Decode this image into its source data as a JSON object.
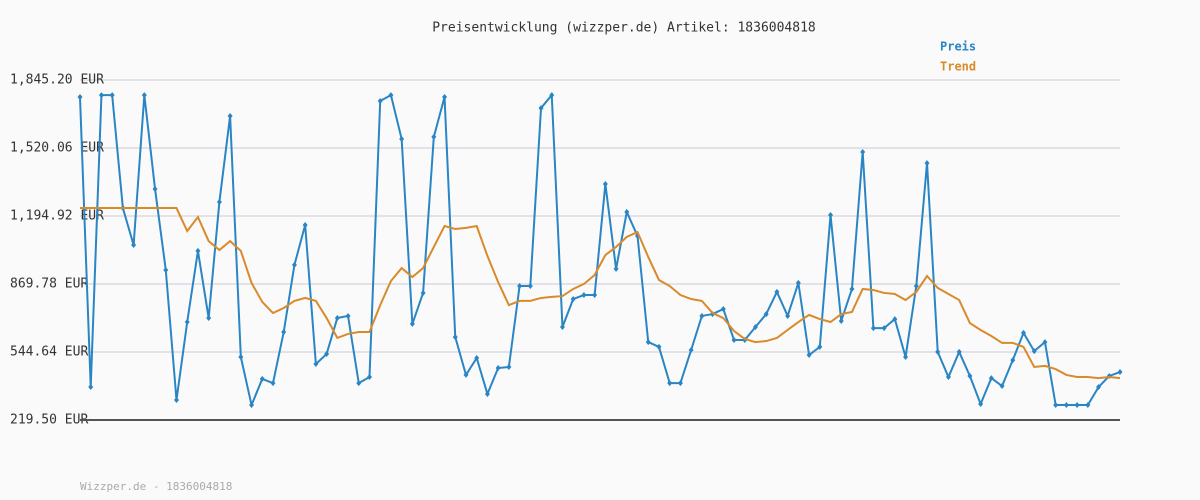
{
  "chart_data": {
    "type": "line",
    "title": "Preisentwicklung (wizzper.de) Artikel: 1836004818",
    "ylim": [
      219.5,
      1845.2
    ],
    "yticks": [
      {
        "value": 219.5,
        "label": "219.50 EUR"
      },
      {
        "value": 544.64,
        "label": "544.64 EUR"
      },
      {
        "value": 869.78,
        "label": "869.78 EUR"
      },
      {
        "value": 1194.92,
        "label": "1,194.92 EUR"
      },
      {
        "value": 1520.06,
        "label": "1,520.06 EUR"
      },
      {
        "value": 1845.2,
        "label": "1,845.20 EUR"
      }
    ],
    "grid": true,
    "legend": "top-right",
    "series": [
      {
        "name": "Preis",
        "color": "#2a85c4",
        "markers": true,
        "values": [
          1764,
          377,
          1773,
          1773,
          1233,
          1056,
          1773,
          1324,
          937,
          315,
          688,
          1028,
          707,
          1262,
          1673,
          521,
          291,
          416,
          396,
          640,
          961,
          1152,
          487,
          535,
          707,
          717,
          396,
          425,
          1745,
          1773,
          1563,
          679,
          827,
          1573,
          1764,
          616,
          435,
          516,
          344,
          468,
          473,
          860,
          860,
          1711,
          1773,
          664,
          798,
          817,
          817,
          1348,
          942,
          1214,
          1099,
          592,
          569,
          396,
          396,
          554,
          717,
          726,
          750,
          602,
          602,
          664,
          726,
          832,
          717,
          875,
          530,
          569,
          1200,
          693,
          846,
          1501,
          659,
          659,
          702,
          521,
          860,
          1448,
          545,
          425,
          545,
          430,
          296,
          420,
          382,
          506,
          636,
          549,
          592,
          291,
          291,
          291,
          291,
          377,
          430,
          449
        ]
      },
      {
        "name": "Trend",
        "color": "#d98a2b",
        "markers": false,
        "values": [
          1233,
          1233,
          1233,
          1233,
          1233,
          1233,
          1233,
          1233,
          1233,
          1233,
          1123,
          1190,
          1075,
          1032,
          1075,
          1028,
          875,
          784,
          731,
          755,
          789,
          803,
          789,
          707,
          612,
          631,
          640,
          640,
          769,
          884,
          946,
          903,
          946,
          1047,
          1147,
          1133,
          1138,
          1147,
          1004,
          879,
          769,
          789,
          789,
          803,
          808,
          812,
          846,
          870,
          913,
          1008,
          1047,
          1095,
          1118,
          999,
          889,
          860,
          817,
          798,
          789,
          731,
          707,
          645,
          607,
          592,
          597,
          612,
          650,
          688,
          722,
          702,
          688,
          726,
          736,
          846,
          841,
          827,
          822,
          793,
          832,
          908,
          851,
          822,
          793,
          683,
          650,
          621,
          588,
          588,
          569,
          473,
          478,
          463,
          435,
          425,
          425,
          420,
          425,
          420
        ]
      }
    ]
  },
  "footer": "Wizzper.de - 1836004818"
}
